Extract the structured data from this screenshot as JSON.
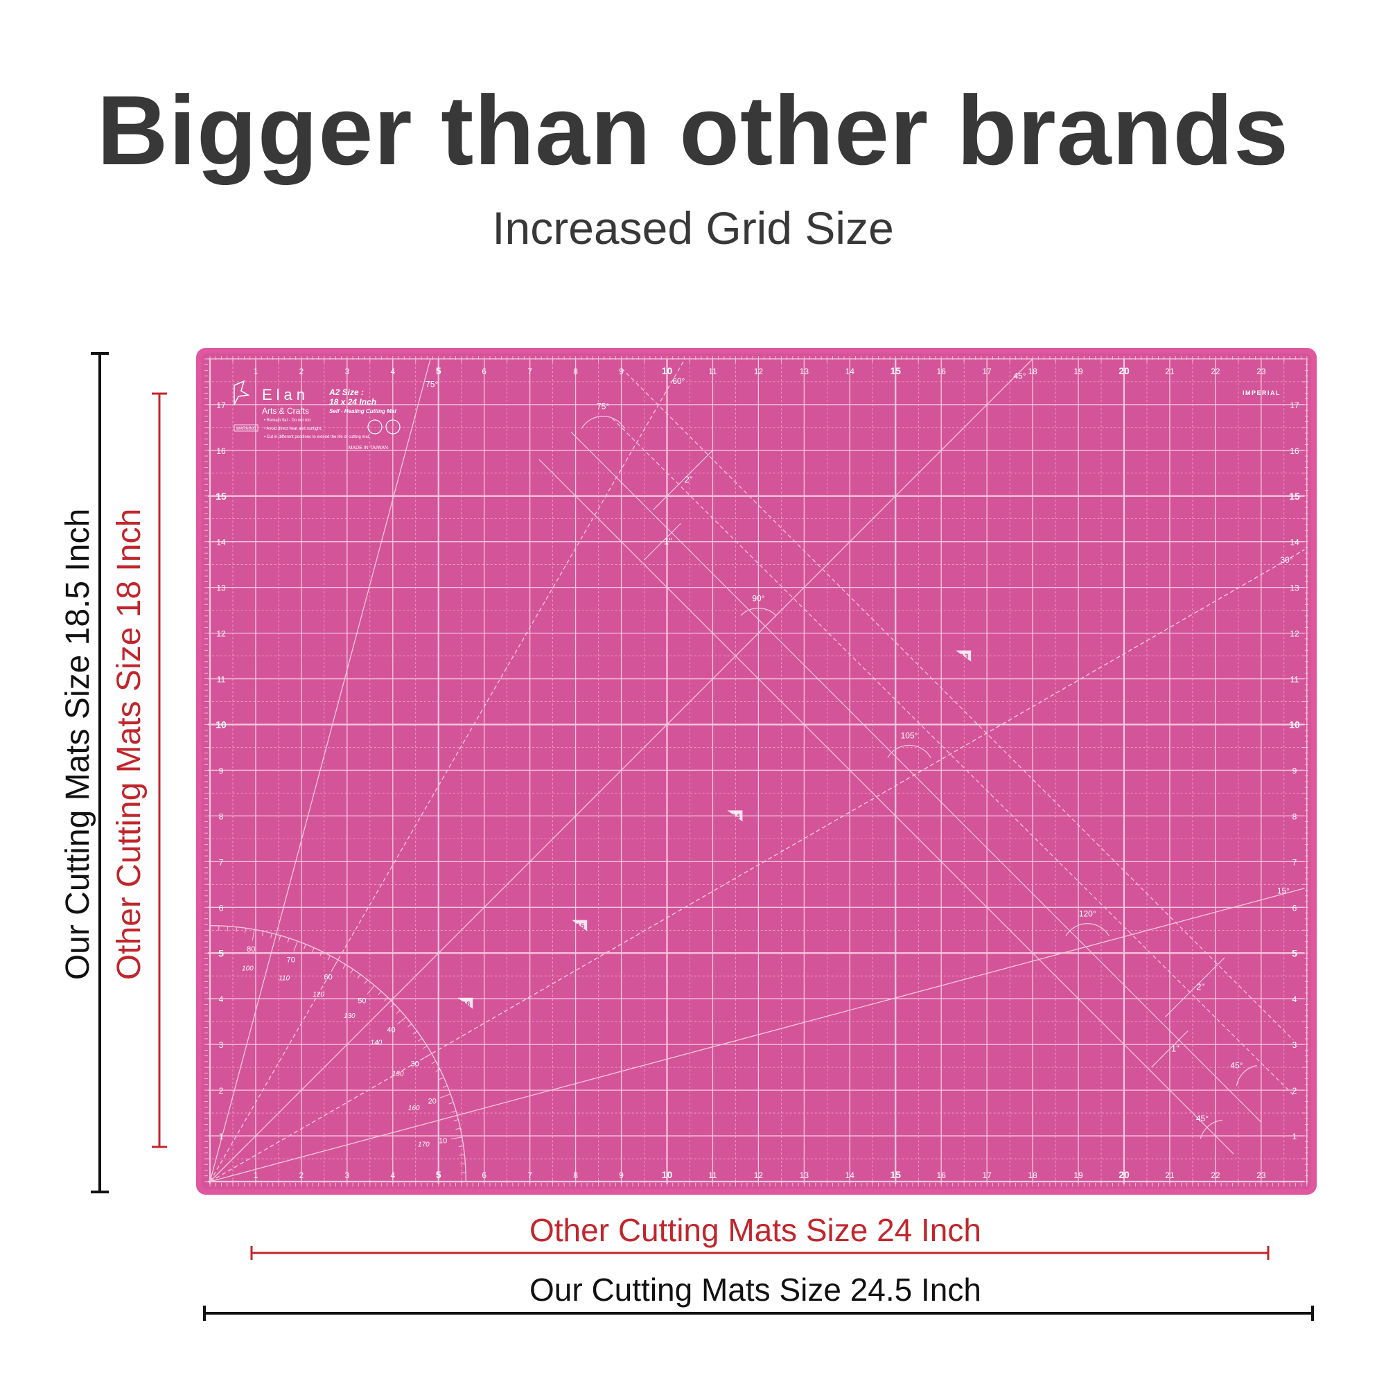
{
  "heading": "Bigger than other brands",
  "subheading": "Increased Grid Size",
  "colors": {
    "mat": "#d45499",
    "mat_border": "#e0569f",
    "line": "#f6c9de",
    "heading_text": "#383838",
    "ours": "#111111",
    "others": "#c0262c"
  },
  "mat": {
    "brand": "Elan",
    "brand_sub": "Arts & Crafts",
    "size_title": "A2 Size :",
    "size_dims": "18 x 24 Inch",
    "size_desc": "Self - Healing Cutting Mat",
    "warning_label": "WARNING",
    "warnings": [
      "• Remain flat - Do not roll.",
      "• Avoid direct heat and sunlight.",
      "• Cut in different positions to extend the life of cutting mat."
    ],
    "made_in": "MADE IN TAIWAN",
    "unit_label": "IMPERIAL",
    "paper_sizes": [
      "A3",
      "A4",
      "A5",
      "A6"
    ],
    "angle_labels": [
      "75°",
      "60°",
      "45°",
      "30°",
      "15°",
      "75°",
      "90°",
      "105°",
      "120°",
      "45°",
      "45°"
    ],
    "dimension_marks": [
      "2\"",
      "1\"",
      "2\"",
      "1\""
    ],
    "protractor_labels": [
      "80",
      "70",
      "60",
      "50",
      "40",
      "30",
      "20",
      "10",
      "100",
      "110",
      "120",
      "130",
      "140",
      "150",
      "160",
      "170"
    ],
    "x_max": 23,
    "y_max": 17
  },
  "dimensions": {
    "ours_width": "Our Cutting Mats Size 24.5 Inch",
    "others_width": "Other Cutting Mats Size 24 Inch",
    "ours_height": "Our Cutting Mats Size 18.5 Inch",
    "others_height": "Other Cutting Mats Size 18 Inch"
  }
}
